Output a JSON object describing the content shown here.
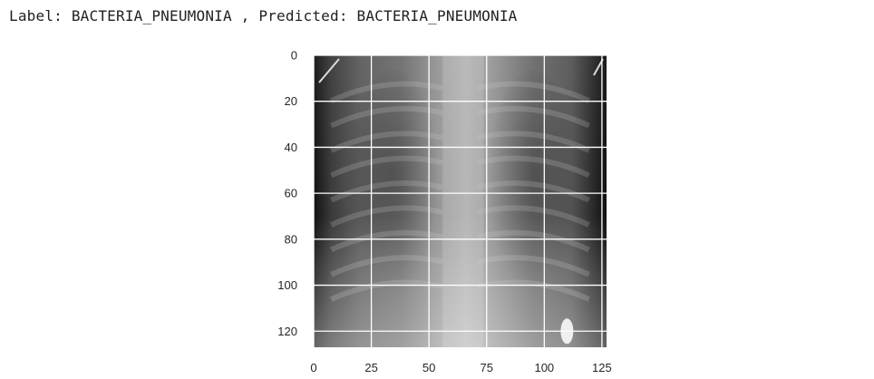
{
  "output": {
    "label_prefix": "Label: ",
    "label_value": "BACTERIA_PNEUMONIA",
    "separator": " , ",
    "predicted_prefix": "Predicted: ",
    "predicted_value": "BACTERIA_PNEUMONIA"
  },
  "chart_data": {
    "type": "heatmap",
    "title": "",
    "xlabel": "",
    "ylabel": "",
    "xlim": [
      0,
      127
    ],
    "ylim": [
      127,
      0
    ],
    "x_ticks": [
      0,
      25,
      50,
      75,
      100,
      125
    ],
    "y_ticks": [
      0,
      20,
      40,
      60,
      80,
      100,
      120
    ],
    "grid": true,
    "grid_color": "#ffffff",
    "colormap": "gray",
    "image_content": "chest-xray"
  }
}
